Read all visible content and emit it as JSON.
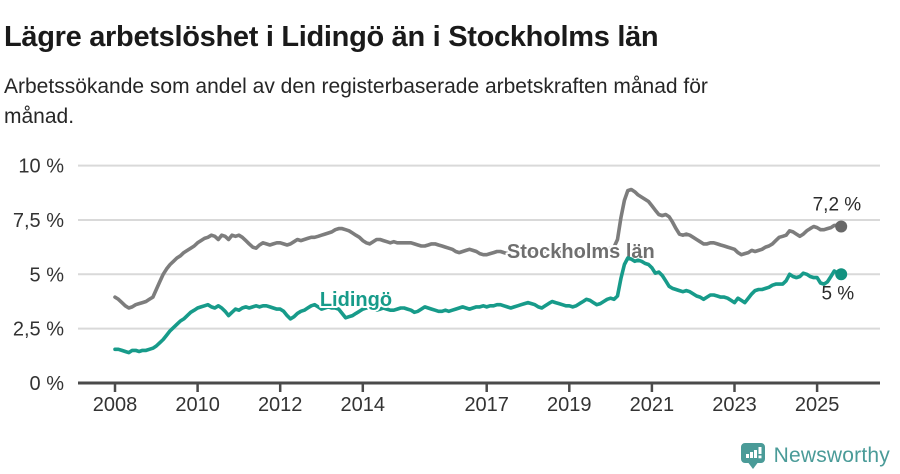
{
  "header": {
    "title": "Lägre arbetslöshet i Lidingö än i Stockholms län",
    "subtitle_lines": [
      "Arbetssökande som andel av den registerbaserade arbetskraften månad för",
      "månad."
    ]
  },
  "footer": {
    "brand": "Newsworthy"
  },
  "colors": {
    "stockholm_line": "#7d7d7d",
    "stockholm_label": "#6f6f6f",
    "stockholm_dot": "#686868",
    "lidingo_line": "#179b8a",
    "lidingo_label": "#179b8a",
    "lidingo_dot": "#12917f",
    "axis": "#4a4a4a",
    "grid": "#d9d9d9",
    "tick_text": "#333333",
    "end_label_text": "#2b2b2b",
    "brand_teal": "#4a9b98"
  },
  "chart_data": {
    "type": "line",
    "title": "Lägre arbetslöshet i Lidingö än i Stockholms län",
    "unit": "%",
    "frequency": "monthly",
    "x_start_year": 2008,
    "x_end": "2025-08",
    "ylim": [
      0,
      10
    ],
    "grid": true,
    "yticks": [
      {
        "value": 10,
        "label": "10 %"
      },
      {
        "value": 7.5,
        "label": "7,5 %"
      },
      {
        "value": 5,
        "label": "5 %"
      },
      {
        "value": 2.5,
        "label": "2,5 %"
      },
      {
        "value": 0,
        "label": "0 %"
      }
    ],
    "xticks": [
      {
        "value": 2008,
        "label": "2008"
      },
      {
        "value": 2010,
        "label": "2010"
      },
      {
        "value": 2012,
        "label": "2012"
      },
      {
        "value": 2014,
        "label": "2014"
      },
      {
        "value": 2017,
        "label": "2017"
      },
      {
        "value": 2019,
        "label": "2019"
      },
      {
        "value": 2021,
        "label": "2021"
      },
      {
        "value": 2023,
        "label": "2023"
      },
      {
        "value": 2025,
        "label": "2025"
      }
    ],
    "series": [
      {
        "name": "Stockholms län",
        "color_key": "stockholm",
        "end_label": "7,2 %",
        "end_label_position": "above",
        "label_anchor": {
          "year": 2017.49,
          "value": 5.75
        },
        "values": [
          3.95,
          3.85,
          3.7,
          3.55,
          3.45,
          3.5,
          3.6,
          3.65,
          3.7,
          3.75,
          3.85,
          3.95,
          4.3,
          4.65,
          5.0,
          5.25,
          5.45,
          5.6,
          5.75,
          5.85,
          6.0,
          6.1,
          6.2,
          6.3,
          6.45,
          6.55,
          6.65,
          6.7,
          6.8,
          6.75,
          6.6,
          6.8,
          6.75,
          6.6,
          6.8,
          6.75,
          6.8,
          6.7,
          6.55,
          6.4,
          6.25,
          6.2,
          6.35,
          6.45,
          6.4,
          6.35,
          6.4,
          6.45,
          6.45,
          6.4,
          6.35,
          6.4,
          6.5,
          6.6,
          6.55,
          6.6,
          6.65,
          6.7,
          6.7,
          6.75,
          6.8,
          6.85,
          6.9,
          6.95,
          7.05,
          7.1,
          7.1,
          7.05,
          7.0,
          6.9,
          6.8,
          6.7,
          6.55,
          6.45,
          6.4,
          6.5,
          6.6,
          6.6,
          6.55,
          6.5,
          6.45,
          6.5,
          6.45,
          6.45,
          6.45,
          6.45,
          6.45,
          6.4,
          6.35,
          6.3,
          6.3,
          6.35,
          6.4,
          6.4,
          6.35,
          6.3,
          6.25,
          6.2,
          6.15,
          6.05,
          6.0,
          6.05,
          6.1,
          6.15,
          6.1,
          6.05,
          5.95,
          5.9,
          5.9,
          5.95,
          6.0,
          6.05,
          6.05,
          6.0,
          5.95,
          6.0,
          6.05,
          6.05,
          6.0,
          6.05,
          6.05,
          6.1,
          6.1,
          6.05,
          6.0,
          6.05,
          6.1,
          6.1,
          6.05,
          6.05,
          6.1,
          6.1,
          6.05,
          6.0,
          6.05,
          6.1,
          6.1,
          6.05,
          6.1,
          6.1,
          6.15,
          6.1,
          6.1,
          6.15,
          6.2,
          6.25,
          6.6,
          7.6,
          8.4,
          8.85,
          8.9,
          8.8,
          8.65,
          8.55,
          8.45,
          8.35,
          8.15,
          7.95,
          7.75,
          7.7,
          7.75,
          7.65,
          7.4,
          7.1,
          6.85,
          6.8,
          6.85,
          6.8,
          6.7,
          6.6,
          6.5,
          6.4,
          6.4,
          6.45,
          6.45,
          6.4,
          6.35,
          6.3,
          6.25,
          6.2,
          6.15,
          6.0,
          5.9,
          5.95,
          6.0,
          6.1,
          6.05,
          6.1,
          6.15,
          6.25,
          6.3,
          6.4,
          6.55,
          6.7,
          6.75,
          6.8,
          7.0,
          6.95,
          6.85,
          6.75,
          6.85,
          7.0,
          7.1,
          7.2,
          7.15,
          7.05,
          7.05,
          7.1,
          7.15,
          7.25,
          7.25,
          7.2
        ]
      },
      {
        "name": "Lidingö",
        "color_key": "lidingo",
        "end_label": "5 %",
        "end_label_position": "below",
        "label_anchor": {
          "year": 2012.96,
          "value": 3.54
        },
        "values": [
          1.55,
          1.55,
          1.5,
          1.45,
          1.4,
          1.5,
          1.5,
          1.45,
          1.5,
          1.5,
          1.55,
          1.6,
          1.7,
          1.85,
          2.0,
          2.2,
          2.4,
          2.55,
          2.7,
          2.85,
          2.95,
          3.1,
          3.25,
          3.35,
          3.45,
          3.5,
          3.55,
          3.6,
          3.5,
          3.45,
          3.55,
          3.45,
          3.3,
          3.1,
          3.25,
          3.4,
          3.35,
          3.45,
          3.5,
          3.45,
          3.5,
          3.55,
          3.5,
          3.55,
          3.55,
          3.5,
          3.45,
          3.4,
          3.4,
          3.3,
          3.1,
          2.95,
          3.05,
          3.2,
          3.3,
          3.35,
          3.45,
          3.55,
          3.6,
          3.5,
          3.4,
          3.45,
          3.5,
          3.45,
          3.45,
          3.4,
          3.2,
          3.0,
          3.05,
          3.1,
          3.2,
          3.3,
          3.4,
          3.45,
          3.45,
          3.4,
          3.35,
          3.4,
          3.45,
          3.4,
          3.35,
          3.35,
          3.4,
          3.45,
          3.45,
          3.4,
          3.35,
          3.25,
          3.3,
          3.4,
          3.5,
          3.45,
          3.4,
          3.35,
          3.3,
          3.3,
          3.35,
          3.3,
          3.35,
          3.4,
          3.45,
          3.5,
          3.45,
          3.4,
          3.45,
          3.5,
          3.5,
          3.55,
          3.5,
          3.55,
          3.55,
          3.6,
          3.6,
          3.55,
          3.5,
          3.45,
          3.5,
          3.55,
          3.6,
          3.65,
          3.7,
          3.65,
          3.6,
          3.5,
          3.45,
          3.55,
          3.65,
          3.75,
          3.7,
          3.65,
          3.6,
          3.55,
          3.55,
          3.5,
          3.55,
          3.65,
          3.75,
          3.85,
          3.8,
          3.7,
          3.6,
          3.65,
          3.75,
          3.85,
          3.9,
          3.85,
          4.0,
          4.8,
          5.45,
          5.75,
          5.7,
          5.6,
          5.65,
          5.6,
          5.5,
          5.45,
          5.3,
          5.05,
          5.1,
          4.95,
          4.7,
          4.45,
          4.35,
          4.3,
          4.25,
          4.2,
          4.25,
          4.2,
          4.1,
          4.0,
          3.95,
          3.85,
          3.95,
          4.05,
          4.05,
          4.0,
          3.95,
          3.95,
          3.9,
          3.8,
          3.7,
          3.9,
          3.8,
          3.7,
          3.9,
          4.1,
          4.25,
          4.3,
          4.3,
          4.35,
          4.4,
          4.5,
          4.55,
          4.55,
          4.55,
          4.7,
          5.0,
          4.9,
          4.85,
          4.9,
          5.05,
          5.0,
          4.9,
          4.85,
          4.85,
          4.6,
          4.55,
          4.65,
          4.9,
          5.15,
          5.05,
          5.0
        ]
      }
    ]
  }
}
